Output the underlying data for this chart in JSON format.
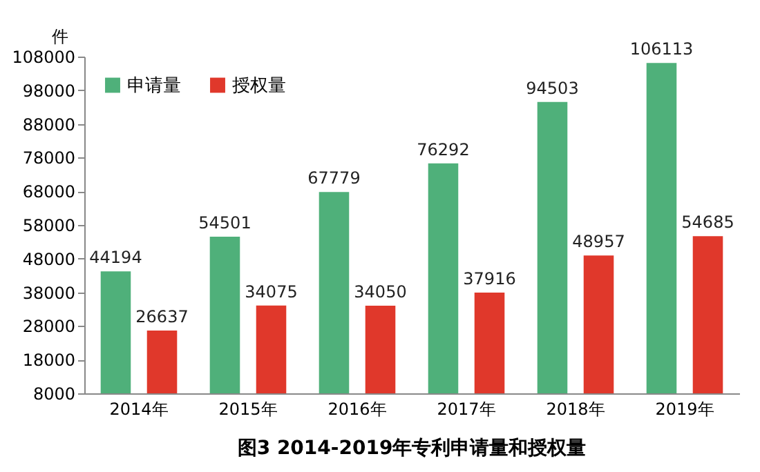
{
  "chart_data": {
    "type": "bar",
    "title": "图3  2014-2019年专利申请量和授权量",
    "ylabel": "件",
    "categories": [
      "2014年",
      "2015年",
      "2016年",
      "2017年",
      "2018年",
      "2019年"
    ],
    "series": [
      {
        "name": "申请量",
        "color": "#4fb07a",
        "values": [
          44194,
          54501,
          67779,
          76292,
          94503,
          106113
        ]
      },
      {
        "name": "授权量",
        "color": "#e0382b",
        "values": [
          26637,
          34075,
          34050,
          37916,
          48957,
          54685
        ]
      }
    ],
    "ylim": [
      8000,
      108000
    ],
    "yticks": [
      8000,
      18000,
      28000,
      38000,
      48000,
      58000,
      68000,
      78000,
      88000,
      98000,
      108000
    ],
    "data_labels": true,
    "legend": "top left",
    "grid": false
  }
}
